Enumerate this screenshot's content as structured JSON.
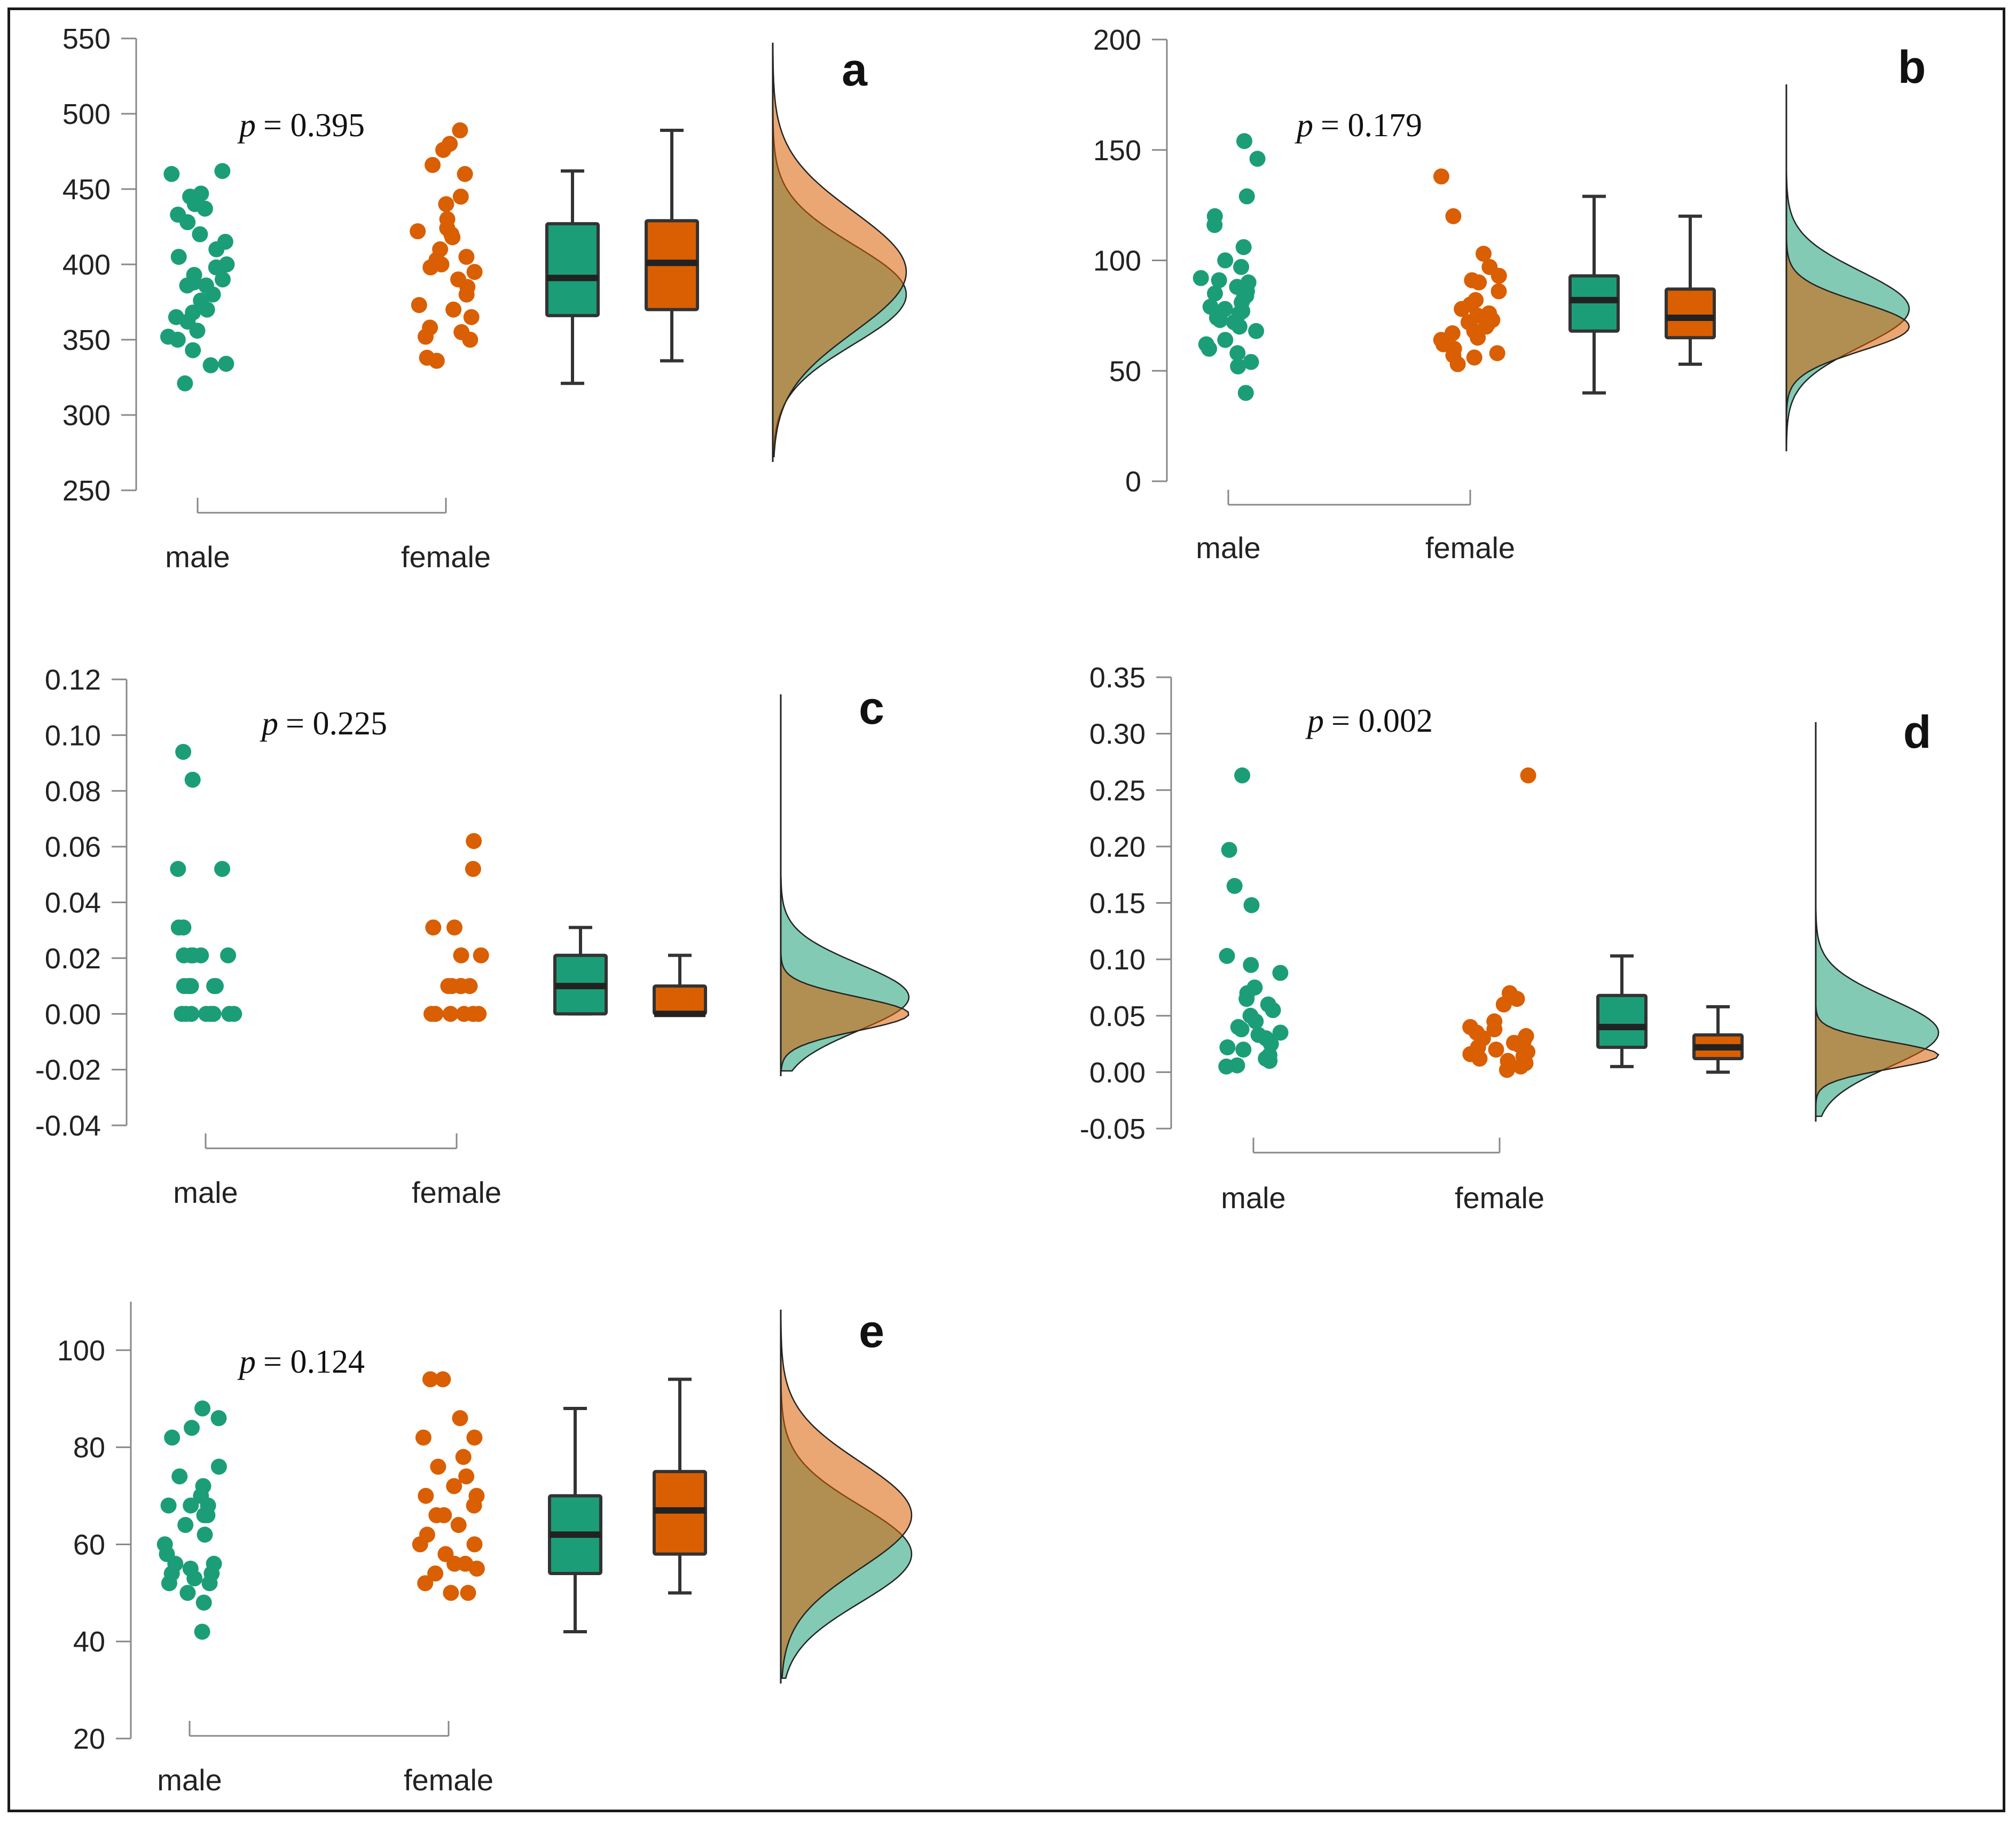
{
  "figure": {
    "colors": {
      "male": "#1b9e77",
      "female": "#d95f02",
      "male_fill": "#1b9e77",
      "female_fill": "#d95f02",
      "overlap": "#b5965d",
      "axis": "#888888",
      "box_line": "#333333"
    }
  },
  "chart_data": [
    {
      "type": "raincloud",
      "panel": "a",
      "p_prefix": "p",
      "p_text": "= 0.395",
      "categories": [
        "male",
        "female"
      ],
      "ylim": [
        250,
        550
      ],
      "yticks": [
        250,
        300,
        350,
        400,
        450,
        500,
        550
      ],
      "ytick_labels": [
        "250",
        "300",
        "350",
        "400",
        "450",
        "500",
        "550"
      ],
      "series": [
        {
          "name": "male",
          "points": [
            462,
            460,
            447,
            445,
            440,
            437,
            433,
            428,
            420,
            415,
            410,
            405,
            400,
            398,
            393,
            390,
            388,
            386,
            386,
            380,
            376,
            370,
            368,
            365,
            362,
            356,
            352,
            350,
            343,
            334,
            333,
            321
          ],
          "box": {
            "min": 321,
            "q1": 366,
            "median": 391,
            "q3": 427,
            "max": 462
          },
          "density": {
            "mode": 380,
            "sd": 33
          }
        },
        {
          "name": "female",
          "points": [
            489,
            480,
            476,
            466,
            460,
            445,
            440,
            430,
            424,
            422,
            420,
            418,
            410,
            405,
            403,
            400,
            398,
            395,
            390,
            385,
            380,
            373,
            370,
            365,
            358,
            355,
            352,
            350,
            338,
            336
          ],
          "box": {
            "min": 336,
            "q1": 370,
            "median": 401,
            "q3": 429,
            "max": 489
          },
          "density": {
            "mode": 395,
            "sd": 40
          }
        }
      ]
    },
    {
      "type": "raincloud",
      "panel": "b",
      "p_prefix": "p",
      "p_text": "= 0.179",
      "categories": [
        "male",
        "female"
      ],
      "ylim": [
        0,
        200
      ],
      "yticks": [
        0,
        50,
        100,
        150,
        200
      ],
      "ytick_labels": [
        "0",
        "50",
        "100",
        "150",
        "200"
      ],
      "series": [
        {
          "name": "male",
          "points": [
            154,
            146,
            129,
            120,
            116,
            106,
            100,
            97,
            92,
            91,
            90,
            88,
            86,
            85,
            84,
            83,
            81,
            79,
            78,
            77,
            76,
            74,
            73,
            72,
            70,
            68,
            64,
            62,
            60,
            58,
            54,
            52,
            40
          ],
          "box": {
            "min": 40,
            "q1": 68,
            "median": 82,
            "q3": 93,
            "max": 129
          },
          "density": {
            "mode": 78,
            "sd": 17
          }
        },
        {
          "name": "female",
          "points": [
            138,
            120,
            103,
            97,
            93,
            91,
            90,
            86,
            82,
            80,
            78,
            76,
            75,
            74,
            73,
            72,
            71,
            70,
            68,
            67,
            65,
            64,
            62,
            60,
            58,
            57,
            56,
            53
          ],
          "box": {
            "min": 53,
            "q1": 65,
            "median": 74,
            "q3": 87,
            "max": 120
          },
          "density": {
            "mode": 70,
            "sd": 11
          }
        }
      ]
    },
    {
      "type": "raincloud",
      "panel": "c",
      "p_prefix": "p",
      "p_text": "= 0.225",
      "categories": [
        "male",
        "female"
      ],
      "ylim": [
        -0.04,
        0.12
      ],
      "yticks": [
        -0.04,
        -0.02,
        0.0,
        0.02,
        0.04,
        0.06,
        0.08,
        0.1,
        0.12
      ],
      "ytick_labels": [
        "-0.04",
        "-0.02",
        "0.00",
        "0.02",
        "0.04",
        "0.06",
        "0.08",
        "0.10",
        "0.12"
      ],
      "series": [
        {
          "name": "male",
          "points": [
            0.094,
            0.084,
            0.052,
            0.052,
            0.031,
            0.031,
            0.021,
            0.021,
            0.021,
            0.021,
            0.021,
            0.01,
            0.01,
            0.01,
            0.01,
            0.01,
            0.01,
            0.0,
            0.0,
            0.0,
            0.0,
            0.0,
            0.0,
            0.0,
            0.0
          ],
          "box": {
            "min": 0.0,
            "q1": 0.0,
            "median": 0.01,
            "q3": 0.021,
            "max": 0.031
          },
          "density": {
            "mode": 0.006,
            "sd": 0.012
          }
        },
        {
          "name": "female",
          "points": [
            0.062,
            0.052,
            0.031,
            0.031,
            0.021,
            0.021,
            0.01,
            0.01,
            0.01,
            0.01,
            0.01,
            0.0,
            0.0,
            0.0,
            0.0,
            0.0,
            0.0
          ],
          "box": {
            "min": 0.0,
            "q1": 0.0,
            "median": 0.0,
            "q3": 0.01,
            "max": 0.021
          },
          "density": {
            "mode": 0.0,
            "sd": 0.006
          }
        }
      ]
    },
    {
      "type": "raincloud",
      "panel": "d",
      "p_prefix": "p",
      "p_text": "= 0.002",
      "categories": [
        "male",
        "female"
      ],
      "ylim": [
        -0.05,
        0.35
      ],
      "yticks": [
        -0.05,
        0.0,
        0.05,
        0.1,
        0.15,
        0.2,
        0.25,
        0.3,
        0.35
      ],
      "ytick_labels": [
        "-0.05",
        "0.00",
        "0.05",
        "0.10",
        "0.15",
        "0.20",
        "0.25",
        "0.30",
        "0.35"
      ],
      "series": [
        {
          "name": "male",
          "points": [
            0.263,
            0.197,
            0.165,
            0.148,
            0.103,
            0.095,
            0.088,
            0.075,
            0.07,
            0.065,
            0.06,
            0.055,
            0.05,
            0.045,
            0.04,
            0.038,
            0.035,
            0.033,
            0.03,
            0.025,
            0.022,
            0.02,
            0.015,
            0.012,
            0.01,
            0.006,
            0.005
          ],
          "box": {
            "min": 0.005,
            "q1": 0.022,
            "median": 0.04,
            "q3": 0.068,
            "max": 0.103
          },
          "density": {
            "mode": 0.035,
            "sd": 0.03
          }
        },
        {
          "name": "female",
          "points": [
            0.263,
            0.07,
            0.065,
            0.06,
            0.045,
            0.04,
            0.038,
            0.035,
            0.032,
            0.03,
            0.028,
            0.026,
            0.024,
            0.022,
            0.02,
            0.018,
            0.016,
            0.014,
            0.012,
            0.01,
            0.008,
            0.005,
            0.002
          ],
          "box": {
            "min": 0.0,
            "q1": 0.012,
            "median": 0.022,
            "q3": 0.033,
            "max": 0.058
          },
          "density": {
            "mode": 0.015,
            "sd": 0.012
          }
        }
      ]
    },
    {
      "type": "raincloud",
      "panel": "e",
      "p_prefix": "p",
      "p_text": "= 0.124",
      "categories": [
        "male",
        "female"
      ],
      "ylim": [
        20,
        110
      ],
      "yticks": [
        20,
        40,
        60,
        80,
        100
      ],
      "ytick_labels": [
        "20",
        "40",
        "60",
        "80",
        "100"
      ],
      "series": [
        {
          "name": "male",
          "points": [
            88,
            86,
            84,
            82,
            76,
            74,
            72,
            70,
            68,
            68,
            68,
            66,
            66,
            64,
            62,
            60,
            58,
            56,
            56,
            55,
            54,
            54,
            53,
            52,
            52,
            50,
            48,
            42
          ],
          "box": {
            "min": 42,
            "q1": 54,
            "median": 62,
            "q3": 70,
            "max": 88
          },
          "density": {
            "mode": 58,
            "sd": 10
          }
        },
        {
          "name": "female",
          "points": [
            94,
            94,
            86,
            82,
            82,
            78,
            76,
            74,
            72,
            70,
            70,
            68,
            66,
            66,
            64,
            62,
            60,
            60,
            58,
            56,
            56,
            55,
            54,
            52,
            50,
            50
          ],
          "box": {
            "min": 50,
            "q1": 58,
            "median": 67,
            "q3": 75,
            "max": 94
          },
          "density": {
            "mode": 66,
            "sd": 11
          }
        }
      ]
    }
  ]
}
